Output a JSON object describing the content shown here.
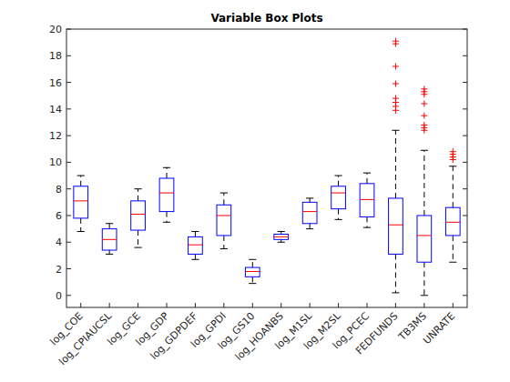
{
  "chart_data": {
    "type": "box",
    "title": "Variable Box Plots",
    "categories": [
      "log_COE",
      "log_CPIAUCSL",
      "log_GCE",
      "log_GDP",
      "log_GDPDEF",
      "log_GPDI",
      "log_GS10",
      "log_HOANBS",
      "log_M1SL",
      "log_M2SL",
      "log_PCEC",
      "FEDFUNDS",
      "TB3MS",
      "UNRATE"
    ],
    "min": [
      4.8,
      3.1,
      3.6,
      5.5,
      2.7,
      3.5,
      0.9,
      4.0,
      5.0,
      5.7,
      5.1,
      0.2,
      0.0,
      2.5
    ],
    "q1": [
      5.8,
      3.4,
      4.9,
      6.3,
      3.1,
      4.5,
      1.4,
      4.2,
      5.4,
      6.5,
      5.9,
      3.1,
      2.5,
      4.5
    ],
    "median": [
      7.1,
      4.2,
      6.1,
      7.7,
      3.8,
      6.0,
      1.8,
      4.4,
      6.3,
      7.7,
      7.2,
      5.3,
      4.5,
      5.5
    ],
    "q3": [
      8.2,
      5.0,
      7.1,
      8.8,
      4.4,
      6.8,
      2.1,
      4.6,
      7.0,
      8.2,
      8.4,
      7.3,
      6.0,
      6.6
    ],
    "max": [
      9.0,
      5.4,
      8.0,
      9.6,
      4.8,
      7.7,
      2.7,
      4.8,
      7.3,
      9.0,
      9.2,
      12.4,
      10.9,
      9.7
    ],
    "outliers": [
      [],
      [],
      [],
      [],
      [],
      [],
      [],
      [],
      [],
      [],
      [],
      [
        19.1,
        18.9,
        17.2,
        15.9,
        14.8,
        14.5,
        14.2,
        13.9
      ],
      [
        15.5,
        15.3,
        15.1,
        14.4,
        13.5,
        12.8,
        12.6,
        12.4
      ],
      [
        10.8,
        10.6,
        10.4,
        10.2
      ]
    ],
    "xlim": [
      0.5,
      14.5
    ],
    "ylim": [
      -0.9,
      20
    ],
    "yticks": [
      0,
      2,
      4,
      6,
      8,
      10,
      12,
      14,
      16,
      18,
      20
    ]
  }
}
